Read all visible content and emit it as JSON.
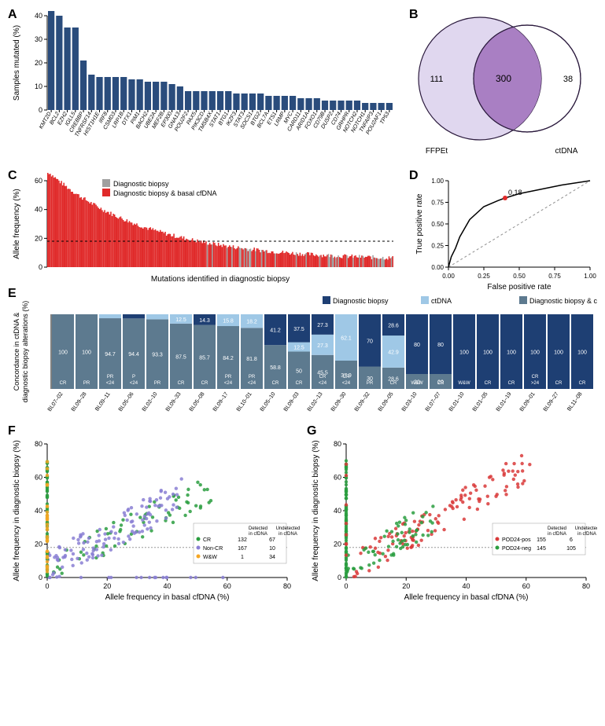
{
  "panelA": {
    "label": "A",
    "ylabel": "Samples mutated (%)",
    "ylim": [
      0,
      40
    ],
    "yticks": [
      0,
      10,
      20,
      30,
      40
    ],
    "bar_color": "#2a4c7c",
    "genes": [
      "KMT2D",
      "BCL2",
      "EZH2",
      "IGLL5",
      "CREBBP",
      "TNFRSF14",
      "HIST1H1E",
      "IRF8",
      "CSMD3",
      "LRP1B",
      "DTX1",
      "PIM1",
      "BACH2",
      "UBE2A",
      "MEF2B",
      "EP300",
      "GNA13",
      "POU2F2",
      "PAX5",
      "PIK3CD",
      "TMSB4X",
      "STAT1",
      "BTG1",
      "IKZF3",
      "STAT3",
      "SOCS1",
      "BTG2",
      "BCL7A",
      "ETS1",
      "LRMP",
      "MYC",
      "CARD11",
      "ARID1A",
      "FOXO1",
      "CD79B",
      "DUSP2",
      "CD74",
      "GRHPR",
      "NOTCH2",
      "NOTCH1",
      "TNFAIP3",
      "POU2AF1",
      "TP53"
    ],
    "values": [
      42,
      40,
      35,
      35,
      21,
      15,
      14,
      14,
      14,
      14,
      13,
      13,
      12,
      12,
      12,
      11,
      10,
      8,
      8,
      8,
      8,
      8,
      8,
      7,
      7,
      7,
      7,
      6,
      6,
      6,
      6,
      5,
      5,
      5,
      4,
      4,
      4,
      4,
      4,
      3,
      3,
      3,
      3
    ]
  },
  "panelB": {
    "label": "B",
    "left_label": "FFPEt",
    "right_label": "ctDNA",
    "left_only": "111",
    "overlap": "300",
    "right_only": "38",
    "left_fill": "#e0d7ef",
    "overlap_fill": "#a97fc3",
    "right_fill": "#ffffff",
    "stroke": "#2b1a3d"
  },
  "panelC": {
    "label": "C",
    "ylabel": "Allele frequency (%)",
    "xlabel": "Mutations identified in diagnostic biopsy",
    "ylim": [
      0,
      60
    ],
    "yticks": [
      0,
      20,
      40,
      60
    ],
    "legend": [
      {
        "label": "Diagnostic biopsy",
        "color": "#a0a0a0"
      },
      {
        "label": "Diagnostic biopsy & basal cfDNA",
        "color": "#e02a2a"
      }
    ],
    "hline": 18,
    "hline_style": "dashed"
  },
  "panelD": {
    "label": "D",
    "xlabel": "False positive rate",
    "ylabel": "True positive rate",
    "xlim": [
      0,
      1
    ],
    "ylim": [
      0,
      1
    ],
    "xticks": [
      0.0,
      0.25,
      0.5,
      0.75,
      1.0
    ],
    "yticks": [
      0.0,
      0.25,
      0.5,
      0.75,
      1.0
    ],
    "diagonal_color": "#909090",
    "curve_color": "#000000",
    "point_color": "#e02a2a",
    "point_label": "0.18",
    "point_xy": [
      0.4,
      0.8
    ]
  },
  "panelE": {
    "label": "E",
    "ylabel": "Concordance in ctDNA &\\ndiagnostic biopsy alterations (%)",
    "ylim": [
      0,
      100
    ],
    "legend": [
      {
        "label": "Diagnostic biopsy",
        "color": "#1e3f73"
      },
      {
        "label": "ctDNA",
        "color": "#9fc8e6"
      },
      {
        "label": "Diagnostic biopsy & ctDNA",
        "color": "#5d7a8f"
      }
    ],
    "bars": [
      {
        "id": "BL07–02",
        "segs": [
          {
            "v": 100,
            "c": "#5d7a8f",
            "t": "100"
          }
        ],
        "bot": "CR"
      },
      {
        "id": "BL09–28",
        "segs": [
          {
            "v": 100,
            "c": "#5d7a8f",
            "t": "100"
          }
        ],
        "bot": "PR"
      },
      {
        "id": "BL09–11",
        "segs": [
          {
            "v": 94.7,
            "c": "#5d7a8f",
            "t": "94.7"
          },
          {
            "v": 5.3,
            "c": "#9fc8e6",
            "t": "5.3"
          }
        ],
        "bot": "<24\\nPR"
      },
      {
        "id": "BL05–06",
        "segs": [
          {
            "v": 94.4,
            "c": "#5d7a8f",
            "t": "94.4"
          },
          {
            "v": 5.6,
            "c": "#1e3f73",
            "t": "5.6"
          }
        ],
        "bot": "<24\\nP"
      },
      {
        "id": "BL02–10",
        "segs": [
          {
            "v": 93.3,
            "c": "#5d7a8f",
            "t": "93.3"
          },
          {
            "v": 6.7,
            "c": "#9fc8e6",
            "t": "6.7"
          }
        ],
        "bot": "PR"
      },
      {
        "id": "BL09–33",
        "segs": [
          {
            "v": 87.5,
            "c": "#5d7a8f",
            "t": "87.5"
          },
          {
            "v": 12.5,
            "c": "#9fc8e6",
            "t": "12.5"
          }
        ],
        "bot": "CR"
      },
      {
        "id": "BL05–08",
        "segs": [
          {
            "v": 85.7,
            "c": "#5d7a8f",
            "t": "85.7"
          },
          {
            "v": 14.3,
            "c": "#1e3f73",
            "t": "14.3"
          }
        ],
        "bot": "CR"
      },
      {
        "id": "BL09–17",
        "segs": [
          {
            "v": 84.2,
            "c": "#5d7a8f",
            "t": "84.2"
          },
          {
            "v": 15.8,
            "c": "#9fc8e6",
            "t": "15.8"
          }
        ],
        "bot": "<24\\nPR"
      },
      {
        "id": "BL10–01",
        "segs": [
          {
            "v": 81.8,
            "c": "#5d7a8f",
            "t": "81.8"
          },
          {
            "v": 18.2,
            "c": "#9fc8e6",
            "t": "18.2"
          }
        ],
        "bot": "<24\\nPR"
      },
      {
        "id": "BL05–10",
        "segs": [
          {
            "v": 58.8,
            "c": "#5d7a8f",
            "t": "58.8"
          },
          {
            "v": 41.2,
            "c": "#1e3f73",
            "t": "41.2"
          }
        ],
        "bot": "CR"
      },
      {
        "id": "BL09–03",
        "segs": [
          {
            "v": 50,
            "c": "#5d7a8f",
            "t": "50"
          },
          {
            "v": 12.5,
            "c": "#9fc8e6",
            "t": "12.5"
          },
          {
            "v": 37.5,
            "c": "#1e3f73",
            "t": "37.5"
          }
        ],
        "bot": "CR"
      },
      {
        "id": "BL02–13",
        "segs": [
          {
            "v": 45.5,
            "c": "#5d7a8f",
            "t": "45.5"
          },
          {
            "v": 27.3,
            "c": "#9fc8e6",
            "t": "27.3"
          },
          {
            "v": 27.3,
            "c": "#1e3f73",
            "t": "27.3"
          }
        ],
        "bot": "<24\\nCR"
      },
      {
        "id": "BL09–30",
        "segs": [
          {
            "v": 37.9,
            "c": "#5d7a8f",
            "t": "37.9"
          },
          {
            "v": 62.1,
            "c": "#9fc8e6",
            "t": "62.1"
          }
        ],
        "bot": "<24\\nCR"
      },
      {
        "id": "BL09–32",
        "segs": [
          {
            "v": 30,
            "c": "#5d7a8f",
            "t": "30"
          },
          {
            "v": 70,
            "c": "#1e3f73",
            "t": "70"
          }
        ],
        "bot": "PR"
      },
      {
        "id": "BL09–05",
        "segs": [
          {
            "v": 28.6,
            "c": "#5d7a8f",
            "t": "28.6"
          },
          {
            "v": 42.9,
            "c": "#9fc8e6",
            "t": "42.9"
          },
          {
            "v": 28.6,
            "c": "#1e3f73",
            "t": "28.6"
          }
        ],
        "bot": "CR"
      },
      {
        "id": "BL03–10",
        "segs": [
          {
            "v": 20,
            "c": "#5d7a8f",
            "t": "20"
          },
          {
            "v": 80,
            "c": "#1e3f73",
            "t": "80"
          }
        ],
        "bot": "W&W"
      },
      {
        "id": "BL07–07",
        "segs": [
          {
            "v": 20,
            "c": "#5d7a8f",
            "t": "20"
          },
          {
            "v": 80,
            "c": "#1e3f73",
            "t": "80"
          }
        ],
        "bot": "CR"
      },
      {
        "id": "BL01–10",
        "segs": [
          {
            "v": 100,
            "c": "#1e3f73",
            "t": "100"
          }
        ],
        "bot": "W&W"
      },
      {
        "id": "BL01–05",
        "segs": [
          {
            "v": 100,
            "c": "#1e3f73",
            "t": "100"
          }
        ],
        "bot": "CR"
      },
      {
        "id": "BL01–19",
        "segs": [
          {
            "v": 100,
            "c": "#1e3f73",
            "t": "100"
          }
        ],
        "bot": "CR"
      },
      {
        "id": "BL09–01",
        "segs": [
          {
            "v": 100,
            "c": "#1e3f73",
            "t": "100"
          }
        ],
        "bot": ">24\\nCR"
      },
      {
        "id": "BL09–27",
        "segs": [
          {
            "v": 100,
            "c": "#1e3f73",
            "t": "100"
          }
        ],
        "bot": "CR"
      },
      {
        "id": "BL11–08",
        "segs": [
          {
            "v": 100,
            "c": "#1e3f73",
            "t": "100"
          }
        ],
        "bot": "CR"
      }
    ]
  },
  "panelF": {
    "label": "F",
    "xlabel": "Allele frequency in basal cfDNA (%)",
    "ylabel": "Allele frequency in diagnostic biopsy (%)",
    "xlim": [
      0,
      80
    ],
    "ylim": [
      0,
      80
    ],
    "ticks": [
      0,
      20,
      40,
      60,
      80
    ],
    "hline": 18,
    "legend": [
      {
        "label": "CR",
        "color": "#2a9d3f"
      },
      {
        "label": "Non-CR",
        "color": "#8a7fd4"
      },
      {
        "label": "W&W",
        "color": "#f5a623"
      }
    ],
    "table": {
      "cols": [
        "",
        "Detected\\nin cfDNA",
        "Undetected\\nin cfDNA"
      ],
      "rows": [
        [
          "CR",
          "132",
          "67"
        ],
        [
          "Non-CR",
          "167",
          "10"
        ],
        [
          "W&W",
          "1",
          "34"
        ]
      ]
    }
  },
  "panelG": {
    "label": "G",
    "xlabel": "Allele frequency in basal cfDNA (%)",
    "ylabel": "Allele frequency in diagnostic biopsy (%)",
    "xlim": [
      0,
      80
    ],
    "ylim": [
      0,
      80
    ],
    "ticks": [
      0,
      20,
      40,
      60,
      80
    ],
    "hline": 18,
    "legend": [
      {
        "label": "POD24-pos",
        "color": "#d93a3a"
      },
      {
        "label": "POD24-neg",
        "color": "#2a9d3f"
      }
    ],
    "table": {
      "cols": [
        "",
        "Detected\\nin cfDNA",
        "Undetected\\nin cfDNA"
      ],
      "rows": [
        [
          "POD24-pos",
          "155",
          "6"
        ],
        [
          "POD24-neg",
          "145",
          "105"
        ]
      ]
    }
  },
  "styling": {
    "axis_font": 9,
    "label_font": 10,
    "panel_font": 16,
    "text_color": "#000000",
    "bg": "#ffffff"
  }
}
